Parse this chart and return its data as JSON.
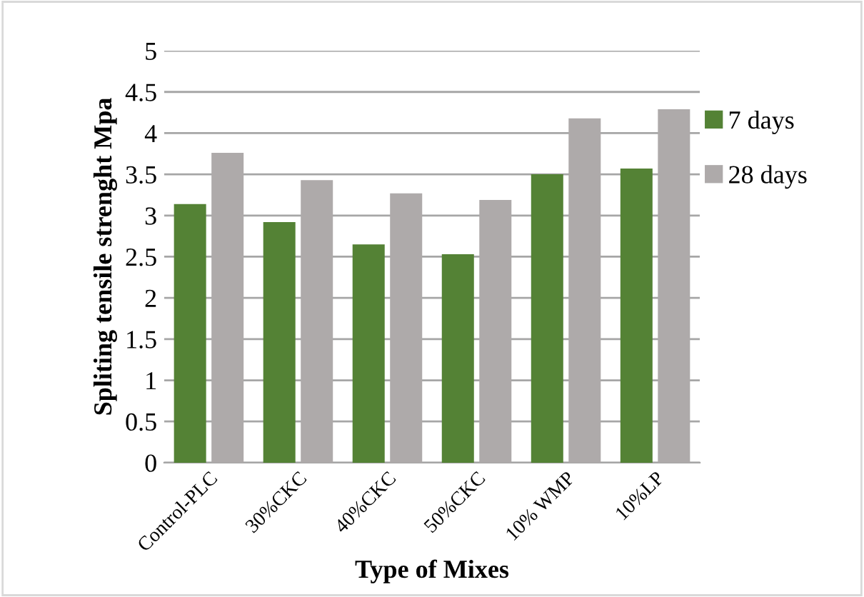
{
  "chart_data": {
    "type": "bar",
    "xlabel": "Type of Mixes",
    "ylabel": "Spliting tensile strenght Mpa",
    "categories": [
      "Control-PLC",
      "30%CKC",
      "40%CKC",
      "50%CKC",
      "10% WMP",
      "10%LP"
    ],
    "series": [
      {
        "name": "7 days",
        "color": "#548235",
        "values": [
          3.14,
          2.92,
          2.65,
          2.53,
          3.5,
          3.57
        ]
      },
      {
        "name": "28 days",
        "color": "#aeaaaa",
        "values": [
          3.76,
          3.43,
          3.27,
          3.19,
          4.18,
          4.29
        ]
      }
    ],
    "ylim": [
      0,
      5
    ],
    "yticks": [
      0,
      0.5,
      1,
      1.5,
      2,
      2.5,
      3,
      3.5,
      4,
      4.5,
      5
    ],
    "grid": "y",
    "legend": "right"
  }
}
